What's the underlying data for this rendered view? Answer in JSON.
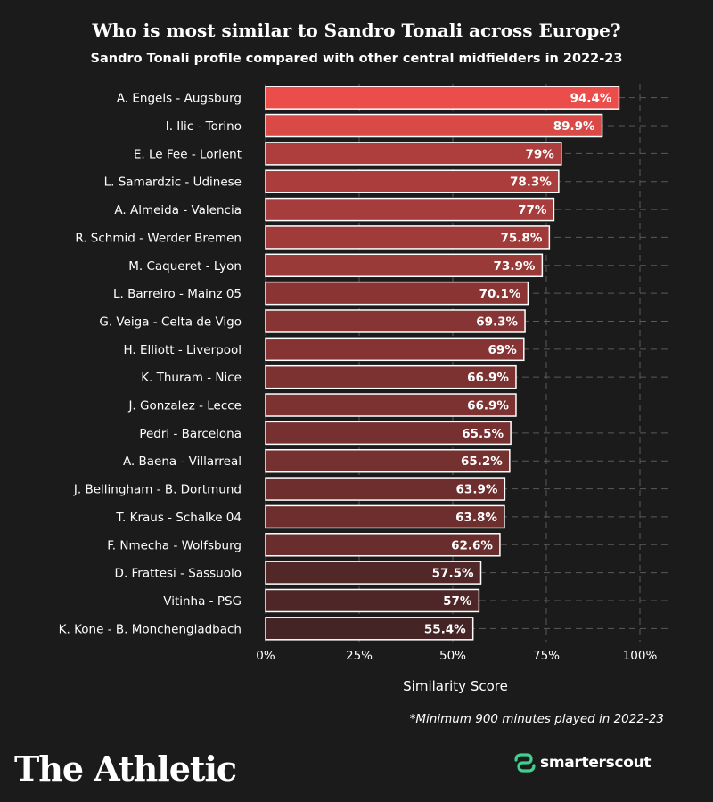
{
  "header": {
    "title": "Who is most similar to Sandro Tonali across Europe?",
    "subtitle": "Sandro Tonali profile compared with other central midfielders in 2022-23"
  },
  "chart_data": {
    "type": "bar",
    "orientation": "horizontal",
    "title": "Who is most similar to Sandro Tonali across Europe?",
    "subtitle": "Sandro Tonali profile compared with other central midfielders in 2022-23",
    "xlabel": "Similarity Score",
    "ylabel": "",
    "xlim": [
      0,
      100
    ],
    "grid": true,
    "categories": [
      "A. Engels - Augsburg",
      "I. Ilic - Torino",
      "E. Le Fee - Lorient",
      "L. Samardzic - Udinese",
      "A. Almeida - Valencia",
      "R. Schmid - Werder Bremen",
      "M. Caqueret - Lyon",
      "L. Barreiro - Mainz 05",
      "G. Veiga - Celta de Vigo",
      "H. Elliott - Liverpool",
      "K. Thuram - Nice",
      "J. Gonzalez - Lecce",
      "Pedri - Barcelona",
      "A. Baena - Villarreal",
      "J. Bellingham - B. Dortmund",
      "T. Kraus - Schalke 04",
      "F. Nmecha - Wolfsburg",
      "D. Frattesi - Sassuolo",
      "Vitinha - PSG",
      "K. Kone - B. Monchengladbach"
    ],
    "values": [
      94.4,
      89.9,
      79,
      78.3,
      77,
      75.8,
      73.9,
      70.1,
      69.3,
      69,
      66.9,
      66.9,
      65.5,
      65.2,
      63.9,
      63.8,
      62.6,
      57.5,
      57,
      55.4
    ],
    "value_labels": [
      "94.4%",
      "89.9%",
      "79%",
      "78.3%",
      "77%",
      "75.8%",
      "73.9%",
      "70.1%",
      "69.3%",
      "69%",
      "66.9%",
      "66.9%",
      "65.5%",
      "65.2%",
      "63.9%",
      "63.8%",
      "62.6%",
      "57.5%",
      "57%",
      "55.4%"
    ],
    "ticks": [
      0,
      25,
      50,
      75,
      100
    ],
    "tick_labels": [
      "0%",
      "25%",
      "50%",
      "75%",
      "100%"
    ],
    "color_high": "#ea4d4a",
    "color_low": "#452425",
    "bar_stroke": "#ffffff"
  },
  "footer": {
    "footnote": "*Minimum 900 minutes played in 2022-23",
    "brand": "The Athletic",
    "partner": "smarterscout",
    "partner_color": "#3fcf8e"
  },
  "colors": {
    "background": "#1b1b1b",
    "gridline": "#5a5a5a",
    "text": "#ffffff"
  }
}
